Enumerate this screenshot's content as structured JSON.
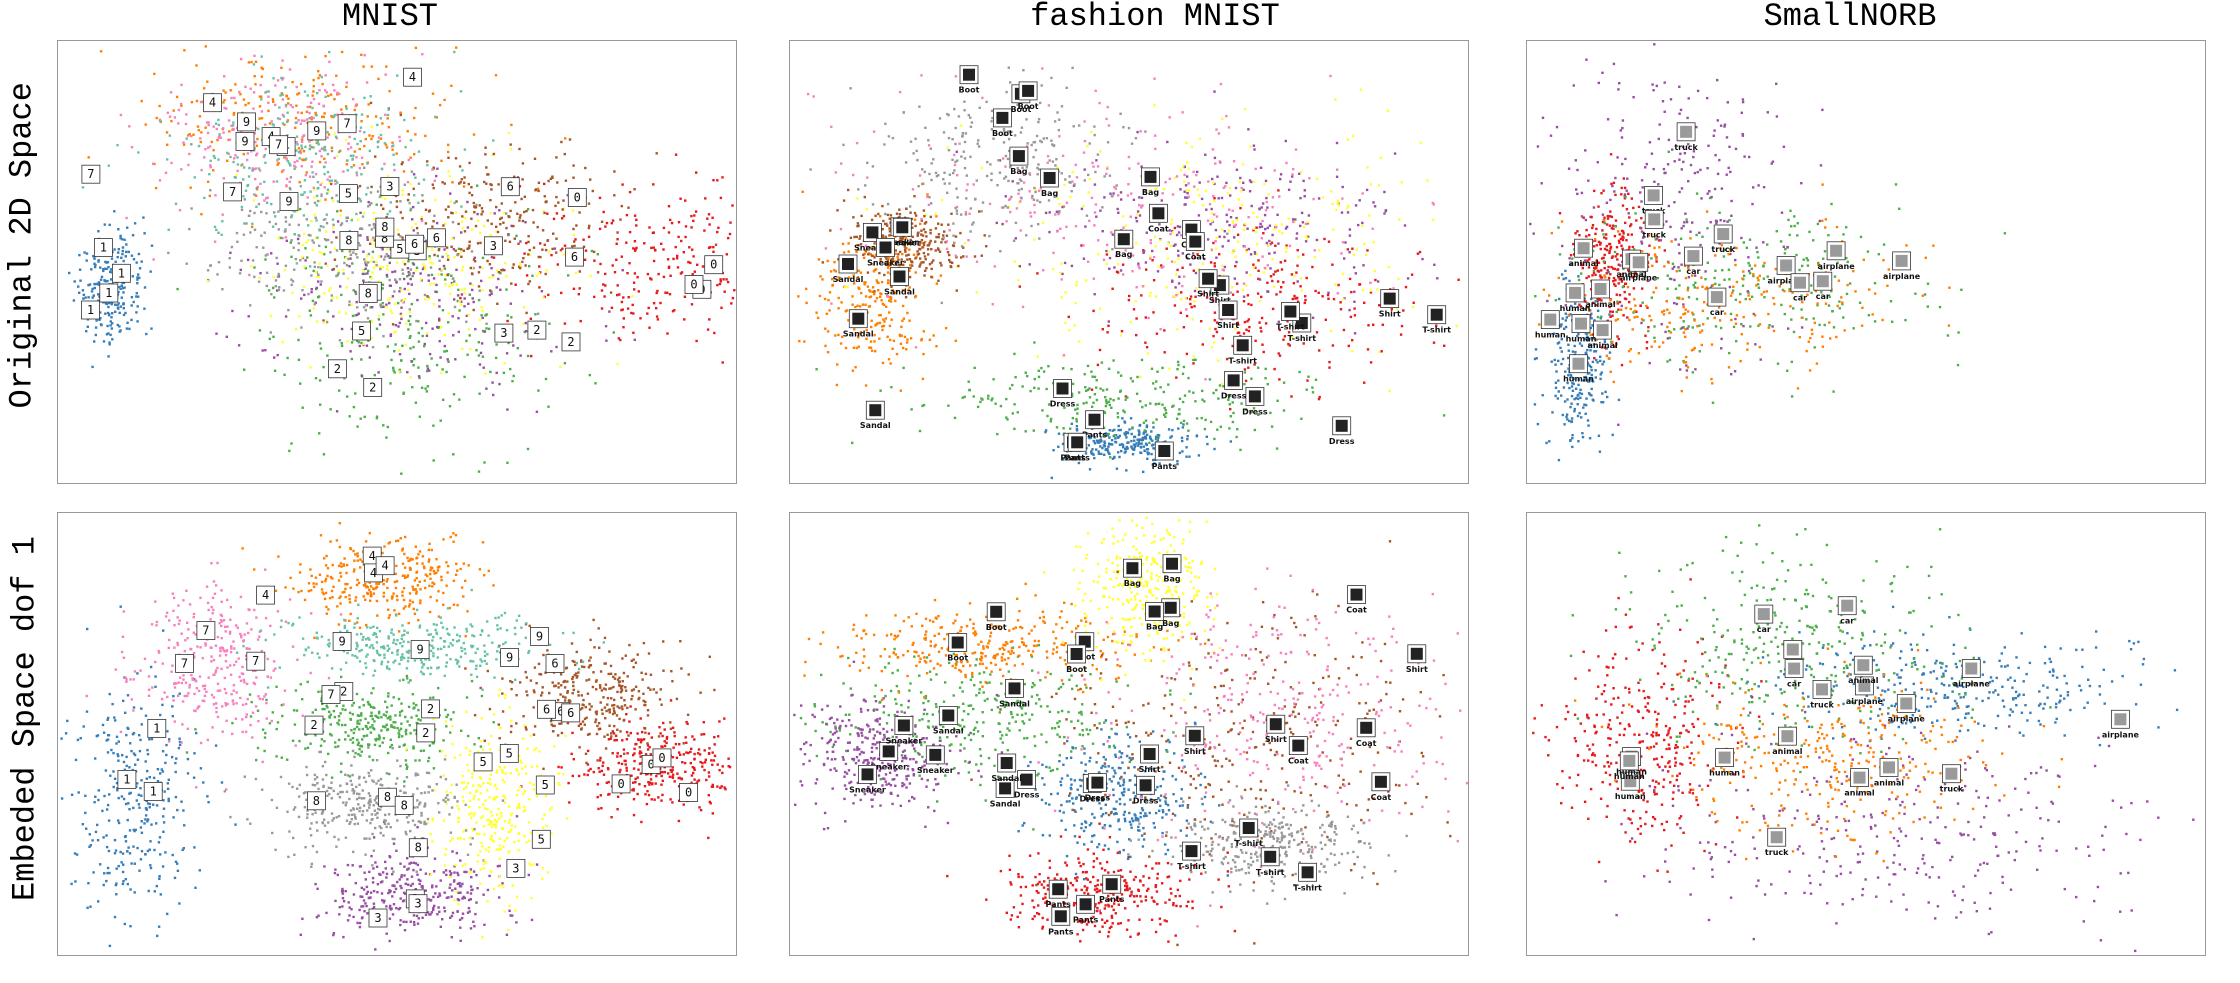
{
  "figure": {
    "column_titles": [
      "MNIST",
      "fashion MNIST",
      "SmallNORB"
    ],
    "row_labels": [
      "Original 2D Space",
      "Embeded Space dof 1"
    ]
  },
  "colors": {
    "palette": [
      "#e41a1c",
      "#377eb8",
      "#4daf4a",
      "#984ea3",
      "#ff7f00",
      "#ffff33",
      "#a65628",
      "#f781bf",
      "#999999",
      "#66c2a5"
    ]
  },
  "chart_data": [
    {
      "type": "scatter",
      "dataset": "MNIST",
      "space": "Original 2D Space",
      "series": [
        {
          "label": "0",
          "center": [
            0.8,
            0.0
          ],
          "spread": [
            0.22,
            0.2
          ]
        },
        {
          "label": "1",
          "center": [
            -0.9,
            -0.1
          ],
          "spread": [
            0.05,
            0.14
          ]
        },
        {
          "label": "2",
          "center": [
            0.0,
            -0.35
          ],
          "spread": [
            0.25,
            0.3
          ]
        },
        {
          "label": "3",
          "center": [
            0.05,
            -0.15
          ],
          "spread": [
            0.25,
            0.25
          ]
        },
        {
          "label": "4",
          "center": [
            -0.3,
            0.7
          ],
          "spread": [
            0.25,
            0.2
          ]
        },
        {
          "label": "5",
          "center": [
            0.0,
            0.0
          ],
          "spread": [
            0.25,
            0.25
          ]
        },
        {
          "label": "6",
          "center": [
            0.3,
            0.2
          ],
          "spread": [
            0.2,
            0.2
          ]
        },
        {
          "label": "7",
          "center": [
            -0.4,
            0.6
          ],
          "spread": [
            0.2,
            0.2
          ]
        },
        {
          "label": "8",
          "center": [
            -0.2,
            0.1
          ],
          "spread": [
            0.2,
            0.2
          ]
        },
        {
          "label": "9",
          "center": [
            -0.3,
            0.5
          ],
          "spread": [
            0.2,
            0.2
          ]
        }
      ]
    },
    {
      "type": "scatter",
      "dataset": "fashion MNIST",
      "space": "Original 2D Space",
      "series": [
        {
          "label": "T-shirt",
          "center": [
            0.4,
            -0.2
          ],
          "spread": [
            0.25,
            0.2
          ]
        },
        {
          "label": "Pants",
          "center": [
            0.0,
            -0.9
          ],
          "spread": [
            0.1,
            0.05
          ]
        },
        {
          "label": "Dress",
          "center": [
            0.0,
            -0.7
          ],
          "spread": [
            0.3,
            0.1
          ]
        },
        {
          "label": "Coat",
          "center": [
            0.3,
            0.2
          ],
          "spread": [
            0.3,
            0.2
          ]
        },
        {
          "label": "Sandal",
          "center": [
            -0.8,
            -0.2
          ],
          "spread": [
            0.1,
            0.2
          ]
        },
        {
          "label": "Shirt",
          "center": [
            0.2,
            0.1
          ],
          "spread": [
            0.4,
            0.3
          ]
        },
        {
          "label": "Sneaker",
          "center": [
            -0.7,
            0.1
          ],
          "spread": [
            0.1,
            0.1
          ]
        },
        {
          "label": "Bag",
          "center": [
            0.0,
            0.3
          ],
          "spread": [
            0.4,
            0.3
          ]
        },
        {
          "label": "Boot",
          "center": [
            -0.4,
            0.5
          ],
          "spread": [
            0.2,
            0.2
          ]
        }
      ]
    },
    {
      "type": "scatter",
      "dataset": "SmallNORB",
      "space": "Original 2D Space",
      "series": [
        {
          "label": "animal",
          "center": [
            -0.8,
            0.0
          ],
          "spread": [
            0.06,
            0.2
          ]
        },
        {
          "label": "human",
          "center": [
            -0.9,
            -0.5
          ],
          "spread": [
            0.05,
            0.2
          ]
        },
        {
          "label": "airplane",
          "center": [
            -0.4,
            -0.1
          ],
          "spread": [
            0.3,
            0.2
          ]
        },
        {
          "label": "truck",
          "center": [
            -0.6,
            0.3
          ],
          "spread": [
            0.2,
            0.4
          ]
        },
        {
          "label": "car",
          "center": [
            -0.5,
            -0.2
          ],
          "spread": [
            0.3,
            0.2
          ]
        }
      ]
    },
    {
      "type": "scatter",
      "dataset": "MNIST",
      "space": "Embeded Space dof 1",
      "series": [
        {
          "label": "0",
          "center": [
            0.82,
            -0.15
          ],
          "spread": [
            0.13,
            0.12
          ]
        },
        {
          "label": "1",
          "center": [
            -0.82,
            -0.35
          ],
          "spread": [
            0.1,
            0.3
          ]
        },
        {
          "label": "2",
          "center": [
            -0.1,
            0.05
          ],
          "spread": [
            0.16,
            0.1
          ]
        },
        {
          "label": "3",
          "center": [
            0.05,
            -0.8
          ],
          "spread": [
            0.16,
            0.12
          ]
        },
        {
          "label": "4",
          "center": [
            -0.05,
            0.78
          ],
          "spread": [
            0.14,
            0.1
          ]
        },
        {
          "label": "5",
          "center": [
            0.3,
            -0.35
          ],
          "spread": [
            0.1,
            0.22
          ]
        },
        {
          "label": "6",
          "center": [
            0.6,
            0.2
          ],
          "spread": [
            0.14,
            0.14
          ]
        },
        {
          "label": "7",
          "center": [
            -0.58,
            0.35
          ],
          "spread": [
            0.12,
            0.18
          ]
        },
        {
          "label": "8",
          "center": [
            -0.1,
            -0.35
          ],
          "spread": [
            0.16,
            0.12
          ]
        },
        {
          "label": "9",
          "center": [
            0.05,
            0.45
          ],
          "spread": [
            0.2,
            0.08
          ]
        }
      ]
    },
    {
      "type": "scatter",
      "dataset": "fashion MNIST",
      "space": "Embeded Space dof 1",
      "series": [
        {
          "label": "Pants",
          "center": [
            -0.1,
            -0.8
          ],
          "spread": [
            0.15,
            0.1
          ]
        },
        {
          "label": "Dress",
          "center": [
            -0.05,
            -0.3
          ],
          "spread": [
            0.12,
            0.15
          ]
        },
        {
          "label": "Sandal",
          "center": [
            -0.5,
            0.1
          ],
          "spread": [
            0.25,
            0.15
          ]
        },
        {
          "label": "Sneaker",
          "center": [
            -0.8,
            -0.1
          ],
          "spread": [
            0.12,
            0.15
          ]
        },
        {
          "label": "Boot",
          "center": [
            -0.45,
            0.45
          ],
          "spread": [
            0.25,
            0.1
          ]
        },
        {
          "label": "Bag",
          "center": [
            0.05,
            0.75
          ],
          "spread": [
            0.1,
            0.18
          ]
        },
        {
          "label": "Shirt",
          "center": [
            0.4,
            0.0
          ],
          "spread": [
            0.3,
            0.35
          ]
        },
        {
          "label": "Coat",
          "center": [
            0.5,
            0.1
          ],
          "spread": [
            0.3,
            0.3
          ]
        },
        {
          "label": "T-shirt",
          "center": [
            0.45,
            -0.55
          ],
          "spread": [
            0.15,
            0.1
          ]
        }
      ]
    },
    {
      "type": "scatter",
      "dataset": "SmallNORB",
      "space": "Embeded Space dof 1",
      "series": [
        {
          "label": "human",
          "center": [
            -0.72,
            -0.05
          ],
          "spread": [
            0.14,
            0.25
          ]
        },
        {
          "label": "airplane",
          "center": [
            0.25,
            0.25
          ],
          "spread": [
            0.3,
            0.12
          ]
        },
        {
          "label": "car",
          "center": [
            -0.2,
            0.45
          ],
          "spread": [
            0.25,
            0.25
          ]
        },
        {
          "label": "truck",
          "center": [
            0.1,
            -0.5
          ],
          "spread": [
            0.4,
            0.25
          ]
        },
        {
          "label": "animal",
          "center": [
            -0.1,
            -0.1
          ],
          "spread": [
            0.25,
            0.2
          ]
        }
      ]
    }
  ]
}
